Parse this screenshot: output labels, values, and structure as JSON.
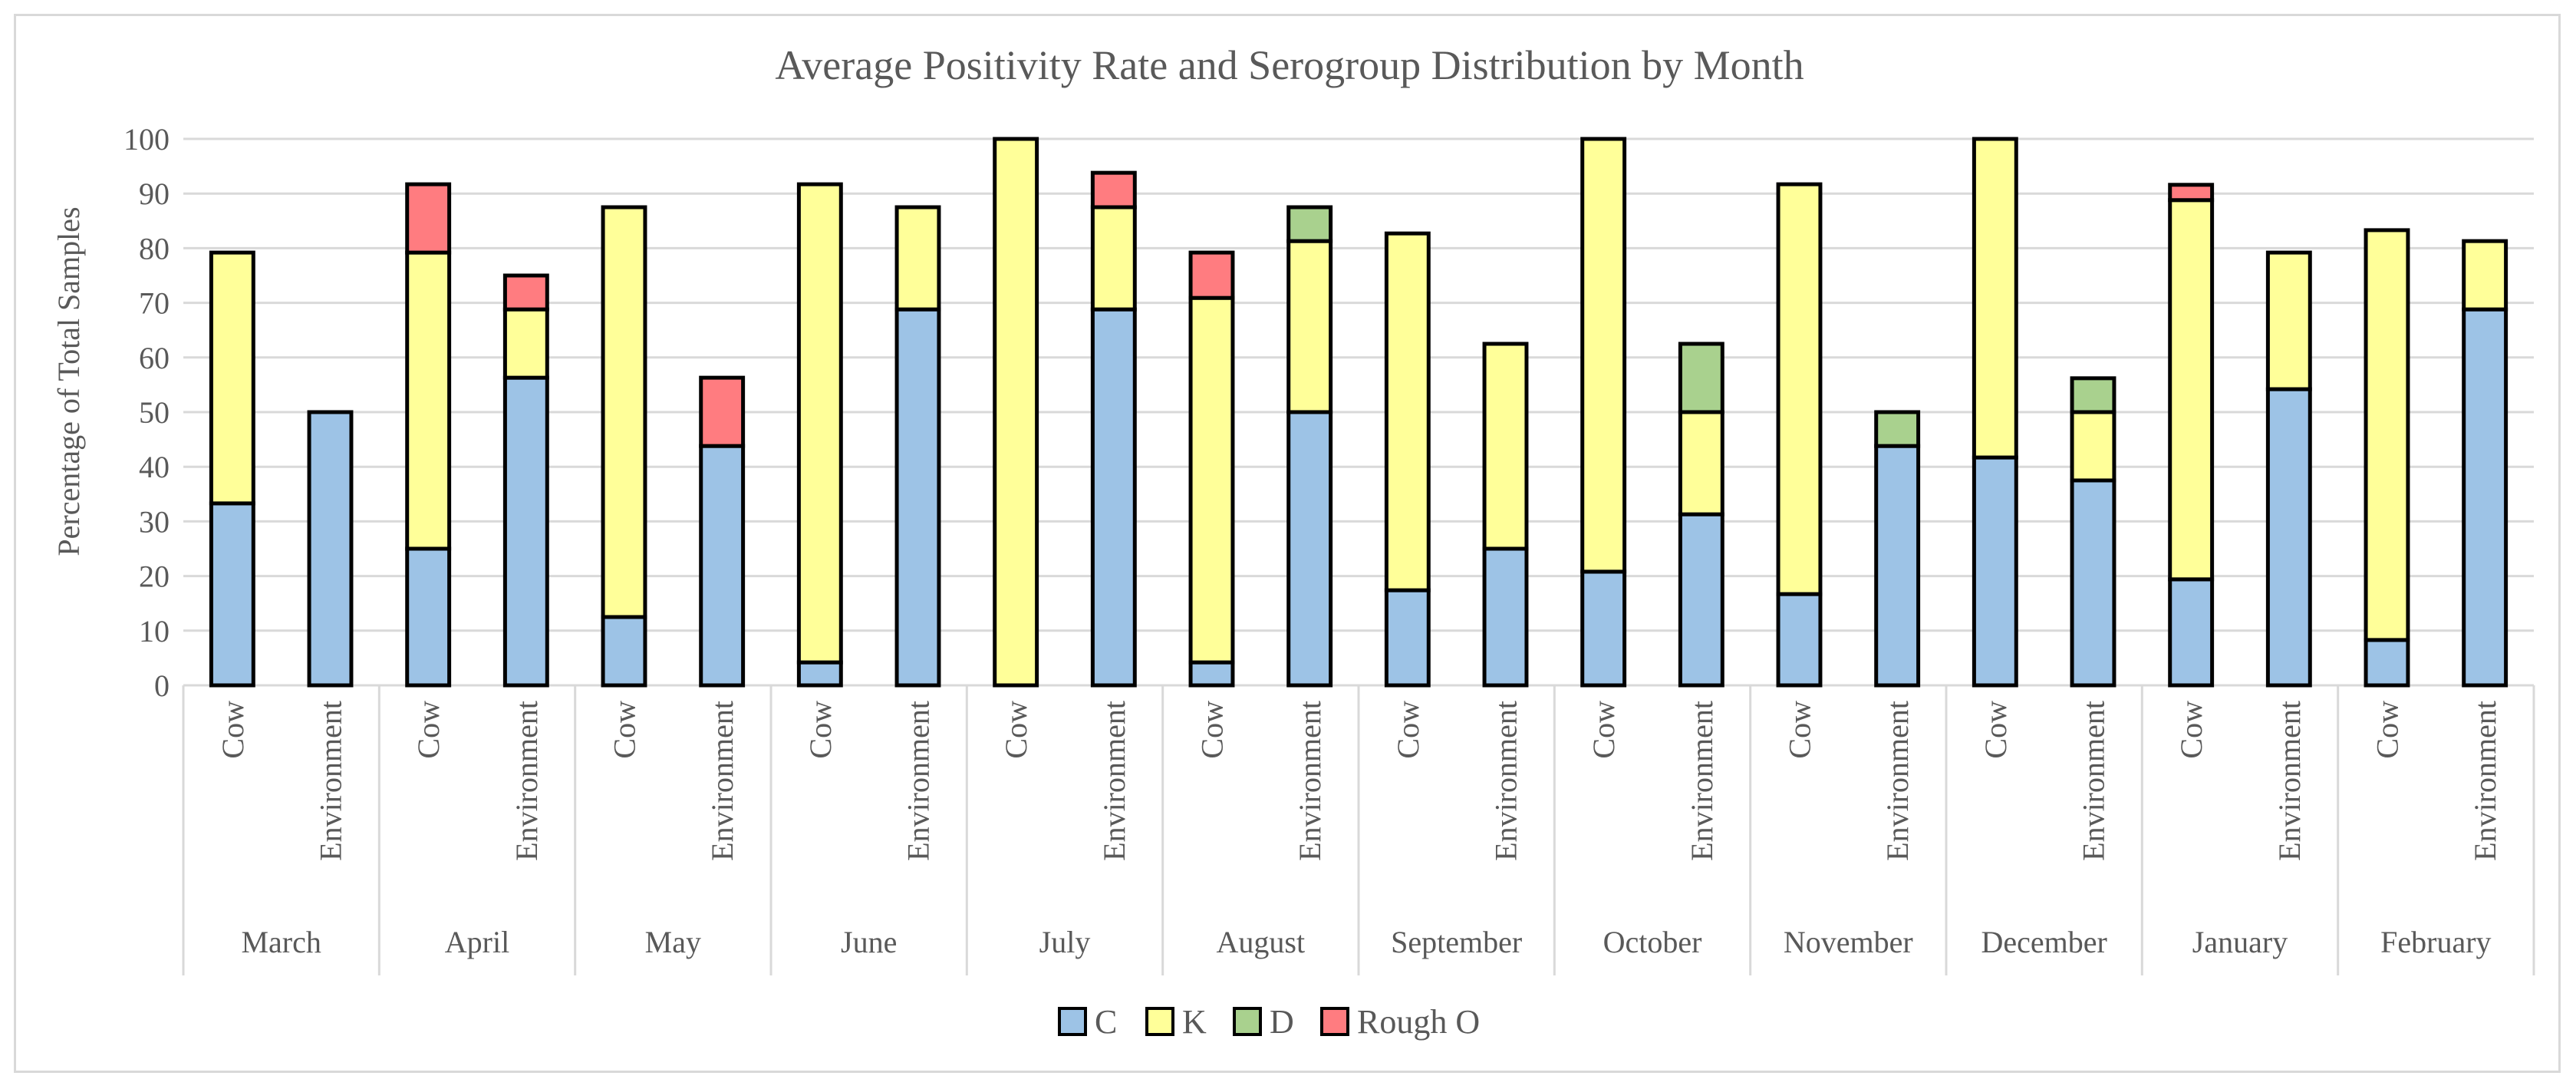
{
  "chart_data": {
    "type": "bar",
    "stacked": true,
    "title": "Average Positivity Rate and Serogroup Distribution by Month",
    "xlabel": "",
    "ylabel": "Percentage of Total Samples",
    "ylim": [
      0,
      100
    ],
    "yticks": [
      0,
      10,
      20,
      30,
      40,
      50,
      60,
      70,
      80,
      90,
      100
    ],
    "grid": true,
    "legend_position": "bottom",
    "months": [
      "March",
      "April",
      "May",
      "June",
      "July",
      "August",
      "September",
      "October",
      "November",
      "December",
      "January",
      "February"
    ],
    "subcategories": [
      "Cow",
      "Environment"
    ],
    "series": [
      {
        "name": "C",
        "color": "#9dc3e6",
        "values": [
          33.3,
          50,
          25,
          56.3,
          12.5,
          43.8,
          4.2,
          68.8,
          0,
          68.8,
          4.2,
          50,
          17.4,
          25,
          20.8,
          31.3,
          16.7,
          43.8,
          41.7,
          37.5,
          19.4,
          54.2,
          8.3,
          68.8
        ]
      },
      {
        "name": "K",
        "color": "#ffff99",
        "values": [
          45.9,
          0,
          54.2,
          12.5,
          75,
          0,
          87.5,
          18.7,
          100,
          18.7,
          66.7,
          31.3,
          65.3,
          37.5,
          79.2,
          18.7,
          75,
          0,
          58.3,
          12.5,
          69.4,
          25,
          75,
          12.5
        ]
      },
      {
        "name": "D",
        "color": "#a9d18e",
        "values": [
          0,
          0,
          0,
          0,
          0,
          0,
          0,
          0,
          0,
          0,
          0,
          6.2,
          0,
          0,
          0,
          12.5,
          0,
          6.2,
          0,
          6.2,
          0,
          0,
          0,
          0
        ]
      },
      {
        "name": "Rough O",
        "color": "#ff7c80",
        "values": [
          0,
          0,
          12.5,
          6.2,
          0,
          12.5,
          0,
          0,
          0,
          6.3,
          8.3,
          0,
          0,
          0,
          0,
          0,
          0,
          0,
          0,
          0,
          2.8,
          0,
          0,
          0
        ]
      }
    ]
  }
}
